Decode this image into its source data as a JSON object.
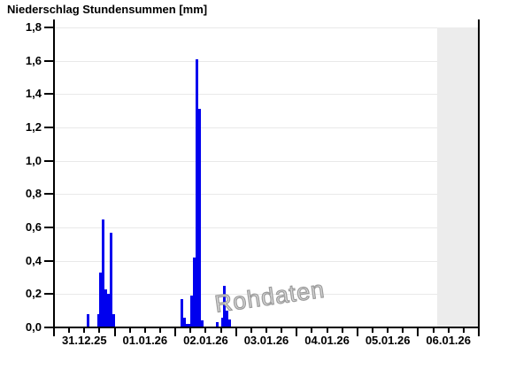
{
  "title": "Niederschlag Stundensummen [mm]",
  "watermark": "Rohdaten",
  "chart_data": {
    "type": "bar",
    "title": "Niederschlag Stundensummen [mm]",
    "ylabel": "Niederschlag Stundensumme [mm]",
    "ylim": [
      0,
      1.8
    ],
    "ytick_labels": [
      "0,0",
      "0,2",
      "0,4",
      "0,6",
      "0,8",
      "1,0",
      "1,2",
      "1,4",
      "1,6",
      "1,8"
    ],
    "grid": true,
    "x_axis": {
      "day_labels": [
        "31.12.25",
        "01.01.26",
        "02.01.26",
        "03.01.26",
        "04.01.26",
        "05.01.26",
        "06.01.26"
      ],
      "start": "31.12.25 00:00",
      "end": "07.01.26 00:00",
      "hours_total": 168,
      "minor_tick_hours": 6,
      "major_tick_hours": 24
    },
    "bar_unit_hours": 1,
    "bar_color": "#0000ee",
    "grid_color": "#e9e9e9",
    "shaded_region": {
      "start_hour": 151.5,
      "end_hour": 167.6,
      "color": "#ececec"
    },
    "bars": [
      {
        "hour": 13,
        "value": 0.08
      },
      {
        "hour": 17,
        "value": 0.08
      },
      {
        "hour": 18,
        "value": 0.33
      },
      {
        "hour": 19,
        "value": 0.65
      },
      {
        "hour": 20,
        "value": 0.23
      },
      {
        "hour": 21,
        "value": 0.2
      },
      {
        "hour": 22,
        "value": 0.57
      },
      {
        "hour": 23,
        "value": 0.08
      },
      {
        "hour": 50,
        "value": 0.17
      },
      {
        "hour": 51,
        "value": 0.06
      },
      {
        "hour": 52,
        "value": 0.02
      },
      {
        "hour": 53,
        "value": 0.02
      },
      {
        "hour": 54,
        "value": 0.19
      },
      {
        "hour": 55,
        "value": 0.42
      },
      {
        "hour": 56,
        "value": 1.61
      },
      {
        "hour": 57,
        "value": 1.31
      },
      {
        "hour": 58,
        "value": 0.04
      },
      {
        "hour": 64,
        "value": 0.03
      },
      {
        "hour": 66,
        "value": 0.06
      },
      {
        "hour": 67,
        "value": 0.25
      },
      {
        "hour": 68,
        "value": 0.1
      },
      {
        "hour": 69,
        "value": 0.05
      }
    ]
  }
}
